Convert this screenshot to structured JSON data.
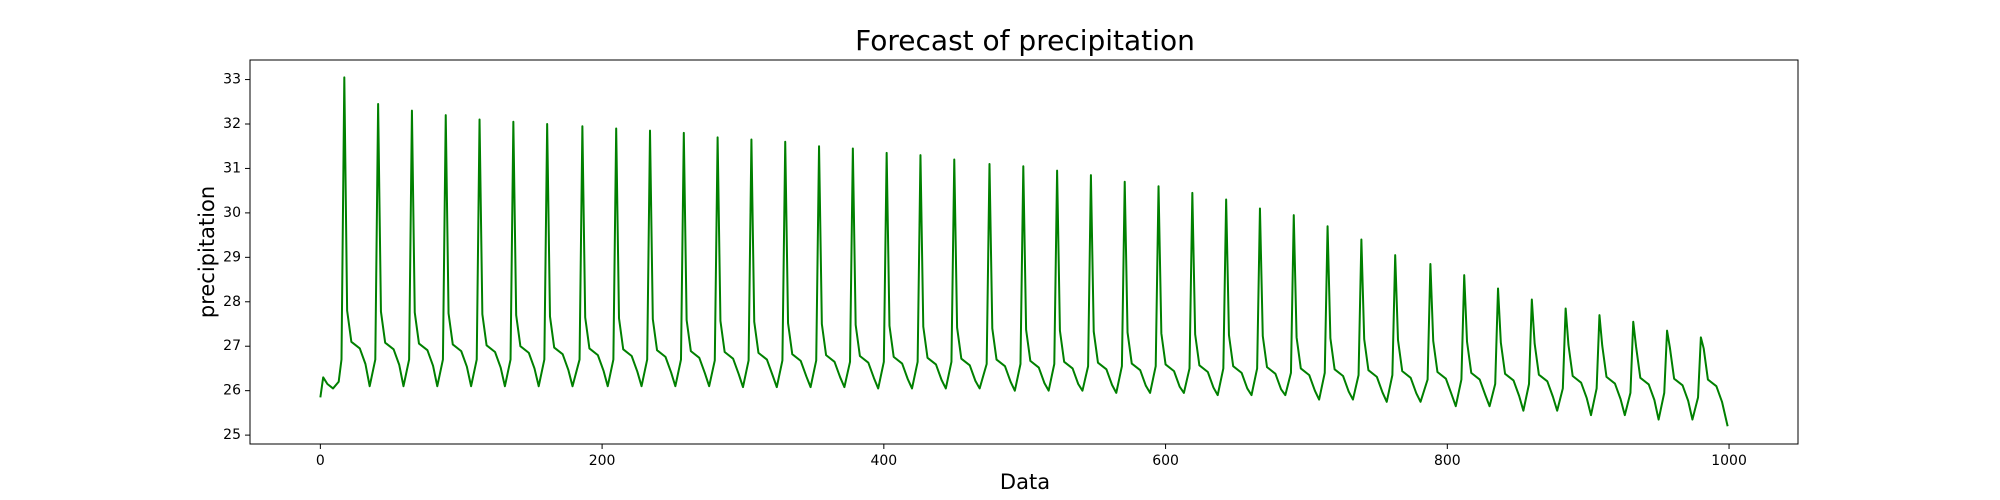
{
  "chart_data": {
    "type": "line",
    "title": "Forecast of precipitation",
    "xlabel": "Data",
    "ylabel": "precipitation",
    "color": "#008000",
    "xlim": [
      -49.95,
      1048.95
    ],
    "ylim": [
      24.8,
      33.44
    ],
    "xticks": [
      0,
      200,
      400,
      600,
      800,
      1000
    ],
    "yticks": [
      25,
      26,
      27,
      28,
      29,
      30,
      31,
      32,
      33
    ],
    "grid": false,
    "x": [
      0,
      2,
      5,
      9,
      13,
      15,
      17,
      19,
      22,
      28,
      32,
      35,
      39,
      41,
      43,
      46,
      52,
      56,
      59,
      63,
      65,
      67,
      70,
      76,
      80,
      83,
      87,
      89,
      91,
      94,
      100,
      104,
      107,
      111,
      113,
      115,
      118,
      124,
      128,
      131,
      135,
      137,
      139,
      142,
      148,
      152,
      155,
      159,
      161,
      163,
      166,
      172,
      176,
      179,
      184,
      186,
      188,
      191,
      197,
      201,
      204,
      208,
      210,
      212,
      215,
      221,
      225,
      228,
      232,
      234,
      236,
      239,
      245,
      249,
      252,
      256,
      258,
      260,
      263,
      269,
      273,
      276,
      280,
      282,
      284,
      287,
      293,
      297,
      300,
      304,
      306,
      308,
      311,
      317,
      321,
      324,
      328,
      330,
      332,
      335,
      341,
      345,
      348,
      352,
      354,
      356,
      359,
      365,
      369,
      372,
      376,
      378,
      380,
      383,
      389,
      393,
      396,
      400,
      402,
      404,
      407,
      413,
      417,
      420,
      424,
      426,
      428,
      431,
      437,
      441,
      444,
      448,
      450,
      452,
      455,
      461,
      465,
      468,
      473,
      475,
      477,
      480,
      486,
      490,
      493,
      497,
      499,
      501,
      504,
      510,
      514,
      517,
      521,
      523,
      525,
      528,
      534,
      538,
      541,
      545,
      547,
      549,
      552,
      558,
      562,
      565,
      569,
      571,
      573,
      576,
      582,
      586,
      589,
      593,
      595,
      597,
      600,
      606,
      610,
      613,
      617,
      619,
      621,
      624,
      630,
      634,
      637,
      641,
      643,
      645,
      648,
      654,
      658,
      661,
      665,
      667,
      669,
      672,
      678,
      682,
      685,
      689,
      691,
      693,
      696,
      702,
      706,
      709,
      713,
      715,
      717,
      720,
      726,
      730,
      733,
      737,
      739,
      741,
      744,
      750,
      754,
      757,
      761,
      763,
      765,
      768,
      774,
      778,
      781,
      786,
      788,
      790,
      793,
      799,
      803,
      806,
      810,
      812,
      814,
      817,
      823,
      827,
      830,
      834,
      836,
      838,
      841,
      847,
      851,
      854,
      858,
      860,
      862,
      865,
      871,
      875,
      878,
      882,
      884,
      886,
      889,
      895,
      899,
      902,
      906,
      908,
      910,
      913,
      919,
      923,
      926,
      930,
      932,
      934,
      937,
      943,
      947,
      950,
      954,
      956,
      958,
      961,
      967,
      971,
      974,
      978,
      980,
      982,
      985,
      991,
      995,
      999
    ],
    "values": [
      25.85,
      26.3,
      26.15,
      26.05,
      26.2,
      26.7,
      33.05,
      27.8,
      27.1,
      26.95,
      26.6,
      26.1,
      26.7,
      32.45,
      27.78,
      27.08,
      26.93,
      26.58,
      26.1,
      26.7,
      32.3,
      27.76,
      27.06,
      26.91,
      26.56,
      26.1,
      26.7,
      32.2,
      27.74,
      27.04,
      26.89,
      26.54,
      26.1,
      26.7,
      32.1,
      27.72,
      27.02,
      26.87,
      26.52,
      26.1,
      26.7,
      32.05,
      27.7,
      27.0,
      26.85,
      26.5,
      26.1,
      26.7,
      32.0,
      27.67,
      26.97,
      26.82,
      26.47,
      26.1,
      26.7,
      31.95,
      27.65,
      26.95,
      26.8,
      26.45,
      26.1,
      26.7,
      31.9,
      27.63,
      26.93,
      26.78,
      26.43,
      26.1,
      26.7,
      31.85,
      27.61,
      26.91,
      26.76,
      26.41,
      26.1,
      26.7,
      31.8,
      27.59,
      26.89,
      26.74,
      26.39,
      26.1,
      26.68,
      31.7,
      27.57,
      26.87,
      26.72,
      26.37,
      26.08,
      26.68,
      31.65,
      27.55,
      26.85,
      26.7,
      26.35,
      26.08,
      26.68,
      31.6,
      27.52,
      26.82,
      26.67,
      26.32,
      26.08,
      26.68,
      31.5,
      27.5,
      26.8,
      26.65,
      26.3,
      26.08,
      26.65,
      31.45,
      27.48,
      26.78,
      26.63,
      26.28,
      26.05,
      26.65,
      31.35,
      27.46,
      26.76,
      26.61,
      26.26,
      26.05,
      26.65,
      31.3,
      27.44,
      26.74,
      26.59,
      26.24,
      26.05,
      26.65,
      31.2,
      27.42,
      26.72,
      26.57,
      26.22,
      26.05,
      26.6,
      31.1,
      27.4,
      26.7,
      26.55,
      26.2,
      26.0,
      26.6,
      31.05,
      27.37,
      26.67,
      26.52,
      26.17,
      26.0,
      26.6,
      30.95,
      27.35,
      26.65,
      26.5,
      26.15,
      26.0,
      26.55,
      30.85,
      27.33,
      26.63,
      26.48,
      26.13,
      25.95,
      26.55,
      30.7,
      27.31,
      26.61,
      26.46,
      26.11,
      25.95,
      26.55,
      30.6,
      27.29,
      26.59,
      26.44,
      26.09,
      25.95,
      26.5,
      30.45,
      27.27,
      26.57,
      26.42,
      26.07,
      25.9,
      26.5,
      30.3,
      27.25,
      26.55,
      26.4,
      26.05,
      25.9,
      26.5,
      30.1,
      27.23,
      26.53,
      26.38,
      26.03,
      25.9,
      26.4,
      29.95,
      27.2,
      26.5,
      26.35,
      26.0,
      25.8,
      26.4,
      29.7,
      27.18,
      26.48,
      26.33,
      25.98,
      25.8,
      26.35,
      29.4,
      27.16,
      26.46,
      26.31,
      25.96,
      25.75,
      26.35,
      29.05,
      27.14,
      26.44,
      26.29,
      25.94,
      25.75,
      26.25,
      28.85,
      27.12,
      26.42,
      26.27,
      25.92,
      25.65,
      26.25,
      28.6,
      27.1,
      26.4,
      26.25,
      25.9,
      25.65,
      26.15,
      28.3,
      27.08,
      26.38,
      26.23,
      25.88,
      25.55,
      26.15,
      28.05,
      27.06,
      26.36,
      26.21,
      25.86,
      25.55,
      26.05,
      27.85,
      27.03,
      26.33,
      26.18,
      25.83,
      25.45,
      26.05,
      27.7,
      27.01,
      26.31,
      26.16,
      25.81,
      25.45,
      25.95,
      27.55,
      26.99,
      26.29,
      26.14,
      25.79,
      25.35,
      25.95,
      27.35,
      26.97,
      26.27,
      26.12,
      25.77,
      25.35,
      25.85,
      27.2,
      26.95,
      26.25,
      26.1,
      25.75,
      25.2
    ]
  }
}
